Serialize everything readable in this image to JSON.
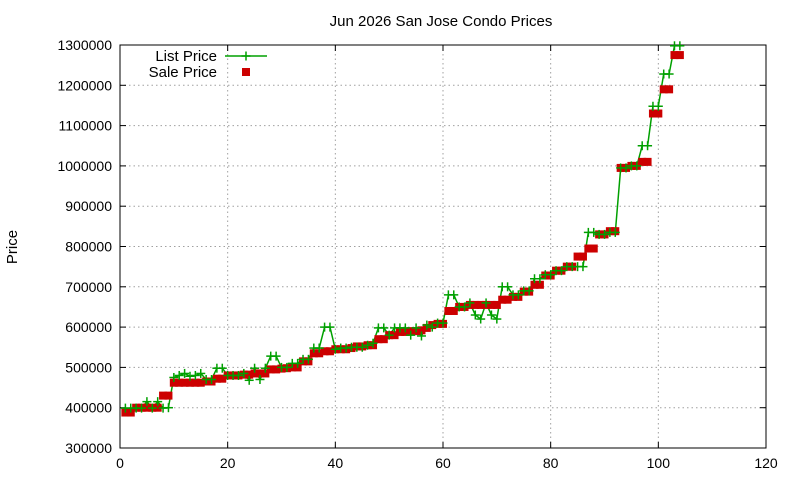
{
  "chart_data": {
    "type": "scatter",
    "title": "Jun 2026 San Jose Condo Prices",
    "xlabel": "",
    "ylabel": "Price",
    "xlim": [
      0,
      120
    ],
    "ylim": [
      300000,
      1300000
    ],
    "x_ticks": [
      "0",
      "20",
      "40",
      "60",
      "80",
      "100",
      "120"
    ],
    "y_ticks": [
      "300000",
      "400000",
      "500000",
      "600000",
      "700000",
      "800000",
      "900000",
      "1000000",
      "1100000",
      "1200000",
      "1300000"
    ],
    "grid": true,
    "legend_position": "top-left",
    "colors": {
      "list": "#00a000",
      "sale": "#cc0000"
    },
    "series": [
      {
        "name": "List Price",
        "style": "line-plus",
        "values": [
          399000,
          399000,
          399000,
          399000,
          415000,
          399000,
          415000,
          399000,
          400000,
          475000,
          480000,
          485000,
          478000,
          480000,
          485000,
          470000,
          470000,
          498000,
          498000,
          480000,
          480000,
          480000,
          485000,
          468000,
          498000,
          470000,
          498000,
          528000,
          528000,
          500000,
          500000,
          510000,
          510000,
          520000,
          520000,
          548000,
          548000,
          600000,
          600000,
          545000,
          548000,
          548000,
          550000,
          550000,
          550000,
          555000,
          560000,
          598000,
          598000,
          580000,
          598000,
          598000,
          598000,
          580000,
          598000,
          578000,
          605000,
          600000,
          610000,
          610000,
          680000,
          680000,
          650000,
          650000,
          660000,
          630000,
          620000,
          660000,
          630000,
          620000,
          700000,
          700000,
          680000,
          680000,
          690000,
          690000,
          720000,
          720000,
          730000,
          730000,
          740000,
          740000,
          750000,
          750000,
          750000,
          750000,
          835000,
          835000,
          830000,
          830000,
          835000,
          835000,
          995000,
          995000,
          1000000,
          1000000,
          1050000,
          1050000,
          1148000,
          1148000,
          1228000,
          1228000,
          1298000,
          1298000
        ]
      },
      {
        "name": "Sale Price",
        "style": "square",
        "values": [
          388000,
          388000,
          400000,
          400000,
          400000,
          400000,
          400000,
          430000,
          430000,
          462000,
          462000,
          462000,
          462000,
          462000,
          462000,
          465000,
          465000,
          472000,
          472000,
          480000,
          480000,
          480000,
          482000,
          482000,
          485000,
          485000,
          485000,
          495000,
          495000,
          497000,
          498000,
          500000,
          500000,
          515000,
          515000,
          535000,
          535000,
          540000,
          540000,
          545000,
          545000,
          545000,
          548000,
          552000,
          552000,
          555000,
          555000,
          570000,
          570000,
          580000,
          580000,
          588000,
          588000,
          590000,
          590000,
          592000,
          598000,
          605000,
          608000,
          608000,
          640000,
          640000,
          650000,
          650000,
          655000,
          655000,
          655000,
          655000,
          655000,
          655000,
          668000,
          668000,
          675000,
          675000,
          688000,
          688000,
          705000,
          705000,
          728000,
          728000,
          740000,
          740000,
          750000,
          750000,
          775000,
          775000,
          795000,
          795000,
          830000,
          830000,
          838000,
          838000,
          995000,
          995000,
          1000000,
          1000000,
          1010000,
          1010000,
          1130000,
          1130000,
          1190000,
          1190000,
          1275000,
          1275000
        ]
      }
    ]
  }
}
